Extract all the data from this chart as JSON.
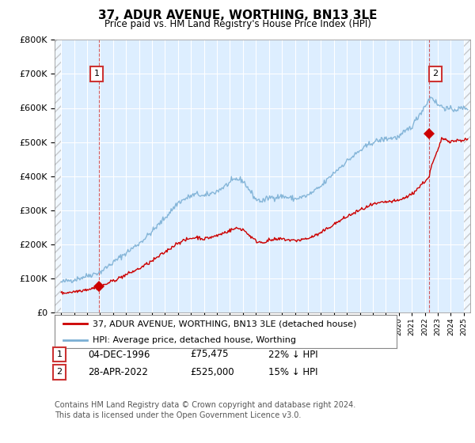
{
  "title": "37, ADUR AVENUE, WORTHING, BN13 3LE",
  "subtitle": "Price paid vs. HM Land Registry's House Price Index (HPI)",
  "legend_line1": "37, ADUR AVENUE, WORTHING, BN13 3LE (detached house)",
  "legend_line2": "HPI: Average price, detached house, Worthing",
  "annotation1_date": "04-DEC-1996",
  "annotation1_price": "£75,475",
  "annotation1_hpi": "22% ↓ HPI",
  "annotation2_date": "28-APR-2022",
  "annotation2_price": "£525,000",
  "annotation2_hpi": "15% ↓ HPI",
  "footer": "Contains HM Land Registry data © Crown copyright and database right 2024.\nThis data is licensed under the Open Government Licence v3.0.",
  "price_color": "#cc0000",
  "hpi_color": "#7bafd4",
  "ylim": [
    0,
    800000
  ],
  "xlim_start": 1993.5,
  "xlim_end": 2025.5,
  "transaction1_x": 1996.92,
  "transaction1_y": 75475,
  "transaction2_x": 2022.32,
  "transaction2_y": 525000,
  "chart_bg": "#ddeeff",
  "hatch_color": "#c8c8d8"
}
